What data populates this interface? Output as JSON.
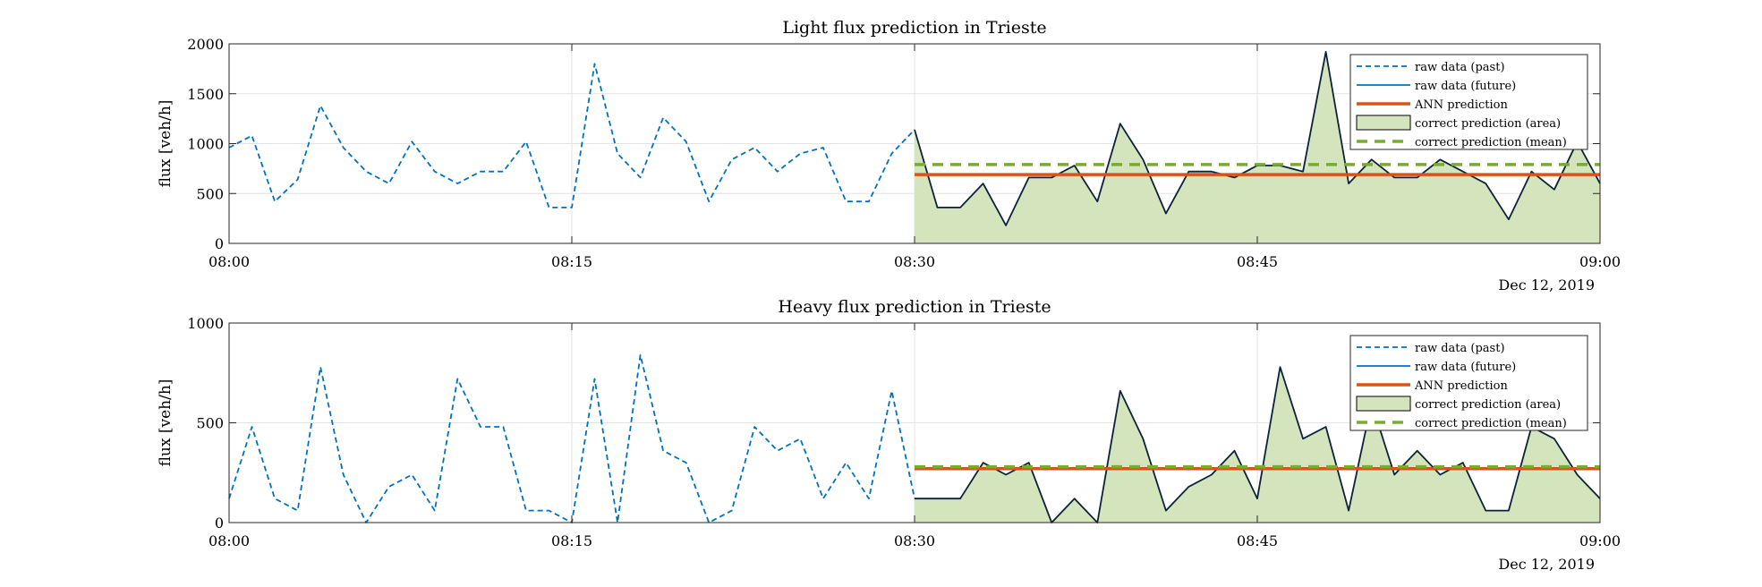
{
  "colors": {
    "raw_past": "#0072BD",
    "raw_future": "#0072BD",
    "ann": "#D95319",
    "area_fill": "#D4E5BE",
    "area_edge": "#0B2238",
    "mean": "#77AC30",
    "grid": "#E3E3E3",
    "axes": "#262626"
  },
  "chart_data": [
    {
      "type": "line",
      "title": "Light flux prediction in Trieste",
      "ylabel": "flux [veh/h]",
      "xlabel": "",
      "date_label": "Dec 12, 2019",
      "x_ticks": [
        "08:00",
        "08:15",
        "08:30",
        "08:45",
        "09:00"
      ],
      "y_ticks": [
        "0",
        "500",
        "1000",
        "1500",
        "2000"
      ],
      "xlim_minutes": [
        0,
        60
      ],
      "ylim": [
        0,
        2000
      ],
      "grid": true,
      "legend_position": "top-right",
      "legend": [
        "raw data (past)",
        "raw data (future)",
        "ANN prediction",
        "correct prediction (area)",
        "correct prediction (mean)"
      ],
      "series": [
        {
          "name": "raw data (past)",
          "style": "dashed",
          "x_minutes": [
            0,
            1,
            2,
            3,
            4,
            5,
            6,
            7,
            8,
            9,
            10,
            11,
            12,
            13,
            14,
            15,
            16,
            17,
            18,
            19,
            20,
            21,
            22,
            23,
            24,
            25,
            26,
            27,
            28,
            29,
            30
          ],
          "values": [
            960,
            1080,
            420,
            640,
            1380,
            960,
            720,
            600,
            1020,
            720,
            600,
            720,
            720,
            1020,
            360,
            360,
            1800,
            900,
            660,
            1260,
            1020,
            420,
            840,
            960,
            720,
            900,
            960,
            420,
            420,
            900,
            1140
          ]
        },
        {
          "name": "correct prediction (area)",
          "style": "filled-area",
          "x_minutes": [
            30,
            31,
            32,
            33,
            34,
            35,
            36,
            37,
            38,
            39,
            40,
            41,
            42,
            43,
            44,
            45,
            46,
            47,
            48,
            49,
            50,
            51,
            52,
            53,
            54,
            55,
            56,
            57,
            58,
            59,
            60
          ],
          "values": [
            1140,
            360,
            360,
            600,
            180,
            660,
            660,
            780,
            420,
            1200,
            840,
            300,
            720,
            720,
            660,
            780,
            780,
            720,
            1920,
            600,
            840,
            660,
            660,
            840,
            720,
            600,
            240,
            720,
            540,
            1020,
            600
          ]
        },
        {
          "name": "ANN prediction",
          "style": "solid",
          "x_minutes": [
            30,
            60
          ],
          "values": [
            690,
            690
          ]
        },
        {
          "name": "correct prediction (mean)",
          "style": "dashed",
          "x_minutes": [
            30,
            60
          ],
          "values": [
            790,
            790
          ]
        }
      ]
    },
    {
      "type": "line",
      "title": "Heavy flux prediction in Trieste",
      "ylabel": "flux [veh/h]",
      "xlabel": "",
      "date_label": "Dec 12, 2019",
      "x_ticks": [
        "08:00",
        "08:15",
        "08:30",
        "08:45",
        "09:00"
      ],
      "y_ticks": [
        "0",
        "500",
        "1000"
      ],
      "xlim_minutes": [
        0,
        60
      ],
      "ylim": [
        0,
        1000
      ],
      "grid": true,
      "legend_position": "top-right",
      "legend": [
        "raw data (past)",
        "raw data (future)",
        "ANN prediction",
        "correct prediction (area)",
        "correct prediction (mean)"
      ],
      "series": [
        {
          "name": "raw data (past)",
          "style": "dashed",
          "x_minutes": [
            0,
            1,
            2,
            3,
            4,
            5,
            6,
            7,
            8,
            9,
            10,
            11,
            12,
            13,
            14,
            15,
            16,
            17,
            18,
            19,
            20,
            21,
            22,
            23,
            24,
            25,
            26,
            27,
            28,
            29,
            30
          ],
          "values": [
            120,
            480,
            120,
            60,
            780,
            240,
            0,
            180,
            240,
            60,
            720,
            480,
            480,
            60,
            60,
            0,
            720,
            0,
            840,
            360,
            300,
            0,
            60,
            480,
            360,
            420,
            120,
            300,
            120,
            660,
            120
          ]
        },
        {
          "name": "correct prediction (area)",
          "style": "filled-area",
          "x_minutes": [
            30,
            31,
            32,
            33,
            34,
            35,
            36,
            37,
            38,
            39,
            40,
            41,
            42,
            43,
            44,
            45,
            46,
            47,
            48,
            49,
            50,
            51,
            52,
            53,
            54,
            55,
            56,
            57,
            58,
            59,
            60
          ],
          "values": [
            120,
            120,
            120,
            300,
            240,
            300,
            0,
            120,
            0,
            660,
            420,
            60,
            180,
            240,
            360,
            120,
            780,
            420,
            480,
            60,
            600,
            240,
            360,
            240,
            300,
            60,
            60,
            480,
            420,
            240,
            120
          ]
        },
        {
          "name": "ANN prediction",
          "style": "solid",
          "x_minutes": [
            30,
            60
          ],
          "values": [
            270,
            270
          ]
        },
        {
          "name": "correct prediction (mean)",
          "style": "dashed",
          "x_minutes": [
            30,
            60
          ],
          "values": [
            280,
            280
          ]
        }
      ]
    }
  ]
}
